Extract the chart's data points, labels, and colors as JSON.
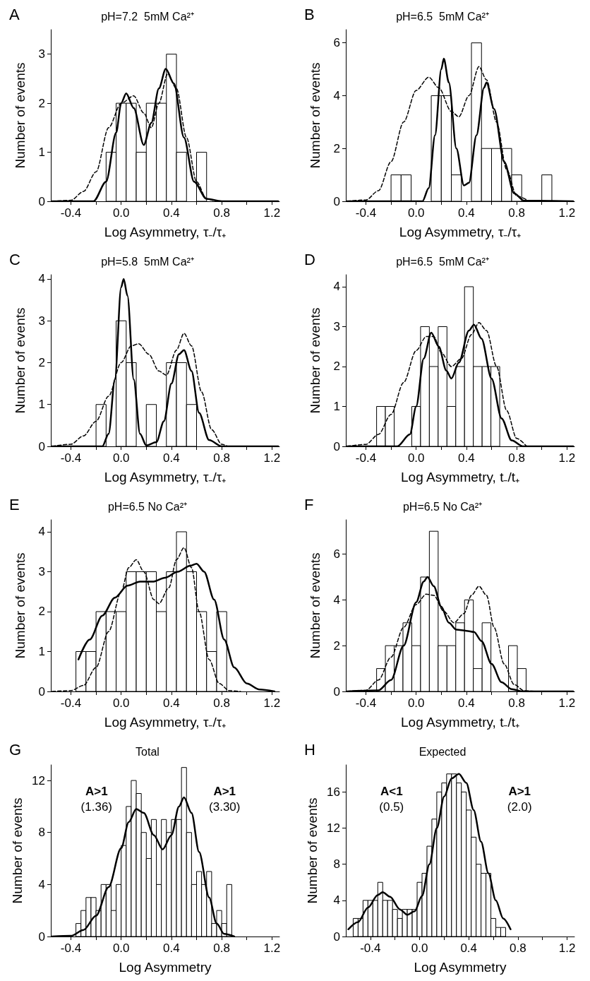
{
  "chart_data": [
    {
      "type": "histogram",
      "title": "A",
      "subtitle": "pH=7.2  5mM Ca²⁺",
      "xlabel": "Log Asymmetry, τ₋/τ₊",
      "ylabel": "Number of events",
      "color": "#ffffff",
      "grid": false,
      "bins": [
        -0.12,
        -0.04,
        0.04,
        0.12,
        0.2,
        0.28,
        0.36,
        0.44,
        0.52,
        0.6,
        0.68
      ],
      "values": [
        1,
        2,
        2,
        1,
        2,
        2,
        3,
        1,
        0,
        1
      ],
      "series": [
        {
          "type": "line",
          "color": "#000000",
          "line_style": "solid",
          "x": [
            -0.55,
            -0.22,
            -0.12,
            -0.04,
            0,
            0.04,
            0.1,
            0.18,
            0.24,
            0.3,
            0.355,
            0.42,
            0.5,
            0.58,
            0.68,
            0.8,
            1.25
          ],
          "values": [
            0,
            0,
            0.4,
            1.4,
            2,
            2.2,
            1.9,
            1.15,
            1.6,
            2.3,
            2.7,
            2.4,
            1.3,
            0.4,
            0.05,
            0,
            0
          ]
        },
        {
          "type": "line",
          "color": "#000000",
          "line_style": "dashed",
          "x": [
            -0.55,
            -0.4,
            -0.3,
            -0.2,
            -0.1,
            0,
            0.1,
            0.18,
            0.24,
            0.3,
            0.37,
            0.44,
            0.52,
            0.6,
            0.68,
            0.75
          ],
          "values": [
            0,
            0.02,
            0.2,
            0.6,
            1.5,
            2,
            2.15,
            1.8,
            1.5,
            2,
            2.6,
            2.3,
            1.3,
            0.4,
            0.05,
            0
          ]
        }
      ],
      "xlim": [
        -0.56,
        1.26
      ],
      "xticks": [
        -0.4,
        {
          "value": -0.2,
          "label": null
        },
        {
          "value": 0,
          "label": "0.0"
        },
        {
          "value": 0.2,
          "label": null
        },
        0.4,
        {
          "value": 0.6,
          "label": null
        },
        0.8,
        {
          "value": 1,
          "label": null
        },
        1.2
      ],
      "ylim": [
        0,
        3.5
      ],
      "yticks": [
        0,
        1,
        2,
        3
      ]
    },
    {
      "type": "histogram",
      "title": "B",
      "subtitle": "pH=6.5  5mM Ca²⁺",
      "xlabel": "Log Asymmetry, τ₋/τ₊",
      "ylabel": "Number of events",
      "color": "#ffffff",
      "grid": false,
      "bins": [
        -0.2,
        -0.12,
        -0.04,
        0.04,
        0.12,
        0.2,
        0.28,
        0.36,
        0.44,
        0.52,
        0.6,
        0.68,
        0.76,
        0.84,
        0.92,
        1.0,
        1.08
      ],
      "values": [
        1,
        1,
        0,
        0,
        4,
        4,
        1,
        0,
        6,
        2,
        2,
        2,
        1,
        0,
        0,
        1
      ],
      "series": [
        {
          "type": "line",
          "color": "#000000",
          "line_style": "solid",
          "x": [
            -0.55,
            0.05,
            0.1,
            0.15,
            0.2,
            0.22,
            0.26,
            0.32,
            0.38,
            0.42,
            0.48,
            0.54,
            0.56,
            0.62,
            0.7,
            0.78,
            0.86,
            1.25
          ],
          "values": [
            0,
            0,
            0.5,
            2.5,
            5,
            5.4,
            4.5,
            2,
            0.6,
            0.7,
            2.5,
            4.3,
            4.5,
            3.5,
            1.5,
            0.3,
            0.02,
            0
          ]
        },
        {
          "type": "line",
          "color": "#000000",
          "line_style": "dashed",
          "x": [
            -0.55,
            -0.4,
            -0.3,
            -0.2,
            -0.1,
            0,
            0.1,
            0.18,
            0.28,
            0.34,
            0.42,
            0.5,
            0.56,
            0.64,
            0.72,
            0.8,
            0.9
          ],
          "values": [
            0,
            0.05,
            0.4,
            1.5,
            3,
            4.2,
            4.7,
            4.3,
            3.4,
            3.2,
            4,
            5.1,
            4.6,
            3,
            1.2,
            0.2,
            0
          ]
        }
      ],
      "xlim": [
        -0.56,
        1.26
      ],
      "xticks": [
        -0.4,
        {
          "value": -0.2,
          "label": null
        },
        {
          "value": 0,
          "label": "0.0"
        },
        {
          "value": 0.2,
          "label": null
        },
        0.4,
        {
          "value": 0.6,
          "label": null
        },
        0.8,
        {
          "value": 1,
          "label": null
        },
        1.2
      ],
      "ylim": [
        0,
        6.5
      ],
      "yticks": [
        0,
        2,
        4,
        6
      ]
    },
    {
      "type": "histogram",
      "title": "C",
      "subtitle": "pH=5.8  5mM Ca²⁺",
      "xlabel": "Log Asymmetry, τ₋/τ₊",
      "ylabel": "Number of events",
      "color": "#ffffff",
      "grid": false,
      "bins": [
        -0.2,
        -0.12,
        -0.04,
        0.04,
        0.12,
        0.2,
        0.28,
        0.36,
        0.44,
        0.52,
        0.6
      ],
      "values": [
        1,
        0,
        3,
        2,
        0,
        1,
        0,
        2,
        2,
        1
      ],
      "series": [
        {
          "type": "line",
          "color": "#000000",
          "line_style": "solid",
          "x": [
            -0.55,
            -0.15,
            -0.1,
            -0.05,
            0,
            0.02,
            0.05,
            0.1,
            0.15,
            0.2,
            0.28,
            0.34,
            0.4,
            0.46,
            0.5,
            0.56,
            0.62,
            0.7,
            0.8,
            1.25
          ],
          "values": [
            0,
            0,
            0.3,
            1.6,
            3.8,
            4,
            3.6,
            1.6,
            0.3,
            0.02,
            0.1,
            0.6,
            1.5,
            2.2,
            2.3,
            1.8,
            0.8,
            0.15,
            0,
            0
          ]
        },
        {
          "type": "line",
          "color": "#000000",
          "line_style": "dashed",
          "x": [
            -0.55,
            -0.4,
            -0.3,
            -0.2,
            -0.1,
            0,
            0.08,
            0.14,
            0.22,
            0.3,
            0.36,
            0.44,
            0.5,
            0.56,
            0.64,
            0.72,
            0.8,
            0.85
          ],
          "values": [
            0,
            0.05,
            0.25,
            0.6,
            1.2,
            2,
            2.4,
            2.45,
            2.2,
            1.8,
            1.7,
            2.3,
            2.7,
            2.4,
            1.3,
            0.4,
            0.05,
            0
          ]
        }
      ],
      "xlim": [
        -0.56,
        1.26
      ],
      "xticks": [
        -0.4,
        {
          "value": -0.2,
          "label": null
        },
        {
          "value": 0,
          "label": "0.0"
        },
        {
          "value": 0.2,
          "label": null
        },
        0.4,
        {
          "value": 0.6,
          "label": null
        },
        0.8,
        {
          "value": 1,
          "label": null
        },
        1.2
      ],
      "ylim": [
        0,
        4.1
      ],
      "yticks": [
        0,
        1,
        2,
        3,
        4
      ]
    },
    {
      "type": "histogram",
      "title": "D",
      "subtitle": "pH=6.5  5mM Ca²⁺",
      "xlabel": "Log Asymmetry, t₋/t₊",
      "ylabel": "Number of events",
      "color": "#ffffff",
      "grid": false,
      "bins": [
        -0.315,
        -0.245,
        -0.175,
        -0.105,
        -0.035,
        0.035,
        0.105,
        0.175,
        0.245,
        0.315,
        0.385,
        0.455,
        0.525,
        0.595,
        0.665
      ],
      "values": [
        1,
        1,
        0,
        0,
        1,
        3,
        2,
        3,
        1,
        2,
        4,
        2,
        2,
        2
      ],
      "series": [
        {
          "type": "line",
          "color": "#000000",
          "line_style": "solid",
          "x": [
            -0.55,
            -0.15,
            -0.05,
            0,
            0.06,
            0.12,
            0.18,
            0.24,
            0.28,
            0.34,
            0.42,
            0.46,
            0.52,
            0.6,
            0.68,
            0.76,
            0.85,
            1.25
          ],
          "values": [
            0,
            0,
            0.3,
            1,
            2.2,
            2.85,
            2.5,
            1.9,
            1.7,
            2.1,
            2.9,
            3.05,
            2.7,
            1.7,
            0.7,
            0.15,
            0,
            0
          ]
        },
        {
          "type": "line",
          "color": "#000000",
          "line_style": "dashed",
          "x": [
            -0.55,
            -0.4,
            -0.3,
            -0.2,
            -0.1,
            0,
            0.08,
            0.14,
            0.2,
            0.28,
            0.36,
            0.44,
            0.5,
            0.56,
            0.64,
            0.72,
            0.8,
            0.88
          ],
          "values": [
            0,
            0.05,
            0.3,
            0.8,
            1.6,
            2.4,
            2.75,
            2.75,
            2.35,
            2,
            2.2,
            2.8,
            3.1,
            2.9,
            2,
            0.9,
            0.2,
            0
          ]
        }
      ],
      "xlim": [
        -0.56,
        1.26
      ],
      "xticks": [
        -0.4,
        {
          "value": -0.2,
          "label": null
        },
        {
          "value": 0,
          "label": "0.0"
        },
        {
          "value": 0.2,
          "label": null
        },
        0.4,
        {
          "value": 0.6,
          "label": null
        },
        0.8,
        {
          "value": 1,
          "label": null
        },
        1.2
      ],
      "ylim": [
        0,
        4.3
      ],
      "yticks": [
        0,
        1,
        2,
        3,
        4
      ]
    },
    {
      "type": "histogram",
      "title": "E",
      "subtitle": "pH=6.5 No Ca²⁺",
      "xlabel": "Log Asymmetry, τ₋/τ₊",
      "ylabel": "Number of events",
      "color": "#ffffff",
      "grid": false,
      "bins": [
        -0.36,
        -0.28,
        -0.2,
        -0.12,
        -0.04,
        0.04,
        0.12,
        0.2,
        0.28,
        0.36,
        0.44,
        0.52,
        0.6,
        0.68,
        0.76,
        0.84
      ],
      "values": [
        1,
        1,
        2,
        2,
        2,
        3,
        3,
        3,
        2,
        3,
        4,
        3,
        2,
        1,
        2
      ],
      "series": [
        {
          "type": "line",
          "color": "#000000",
          "line_style": "solid",
          "x": [
            -0.34,
            -0.25,
            -0.15,
            -0.05,
            0.05,
            0.15,
            0.25,
            0.35,
            0.45,
            0.55,
            0.6,
            0.66,
            0.74,
            0.82,
            0.9,
            1,
            1.1,
            1.22
          ],
          "values": [
            0.8,
            1.3,
            1.9,
            2.35,
            2.65,
            2.75,
            2.75,
            2.85,
            3,
            3.15,
            3.2,
            3,
            2.3,
            1.3,
            0.6,
            0.2,
            0.05,
            0
          ]
        },
        {
          "type": "line",
          "color": "#000000",
          "line_style": "dashed",
          "x": [
            -0.55,
            -0.4,
            -0.3,
            -0.2,
            -0.1,
            0,
            0.06,
            0.12,
            0.18,
            0.26,
            0.3,
            0.38,
            0.44,
            0.5,
            0.56,
            0.62,
            0.7,
            0.78,
            0.86,
            0.95
          ],
          "values": [
            0,
            0.02,
            0.15,
            0.6,
            1.5,
            2.5,
            3.1,
            3.3,
            3,
            2.3,
            2.2,
            2.6,
            3.3,
            3.6,
            3.1,
            2,
            0.8,
            0.2,
            0.02,
            0
          ]
        }
      ],
      "xlim": [
        -0.56,
        1.26
      ],
      "xticks": [
        -0.4,
        {
          "value": -0.2,
          "label": null
        },
        {
          "value": 0,
          "label": "0.0"
        },
        {
          "value": 0.2,
          "label": null
        },
        0.4,
        {
          "value": 0.6,
          "label": null
        },
        0.8,
        {
          "value": 1,
          "label": null
        },
        1.2
      ],
      "ylim": [
        0,
        4.3
      ],
      "yticks": [
        0,
        1,
        2,
        3,
        4
      ]
    },
    {
      "type": "histogram",
      "title": "F",
      "subtitle": "pH=6.5 No Ca²⁺",
      "xlabel": "Log Asymmetry, t₋/t₊",
      "ylabel": "Number of events",
      "color": "#ffffff",
      "grid": false,
      "bins": [
        -0.315,
        -0.245,
        -0.175,
        -0.105,
        -0.035,
        0.035,
        0.105,
        0.175,
        0.245,
        0.315,
        0.385,
        0.455,
        0.525,
        0.595,
        0.665,
        0.735,
        0.805,
        0.875
      ],
      "values": [
        1,
        2,
        2,
        3,
        2,
        5,
        7,
        2,
        2,
        3,
        4,
        1,
        3,
        0,
        0,
        2,
        1
      ],
      "series": [
        {
          "type": "line",
          "color": "#000000",
          "line_style": "solid",
          "x": [
            -0.55,
            -0.3,
            -0.2,
            -0.1,
            0,
            0.06,
            0.09,
            0.14,
            0.2,
            0.26,
            0.32,
            0.4,
            0.46,
            0.52,
            0.6,
            0.68,
            0.76,
            0.85,
            1.25
          ],
          "values": [
            0,
            0.05,
            0.5,
            2,
            3.9,
            4.8,
            5,
            4.6,
            3.7,
            3,
            2.7,
            2.65,
            2.6,
            2.2,
            1.2,
            0.4,
            0.1,
            0,
            0
          ]
        },
        {
          "type": "line",
          "color": "#000000",
          "line_style": "dashed",
          "x": [
            -0.55,
            -0.4,
            -0.3,
            -0.2,
            -0.1,
            0,
            0.08,
            0.14,
            0.22,
            0.3,
            0.38,
            0.44,
            0.5,
            0.56,
            0.62,
            0.7,
            0.78,
            0.86,
            0.95
          ],
          "values": [
            0,
            0.05,
            0.5,
            1.5,
            2.8,
            3.8,
            4.25,
            4.2,
            3.5,
            3,
            3.4,
            4.2,
            4.6,
            4.2,
            2.8,
            1.2,
            0.3,
            0.03,
            0
          ]
        }
      ],
      "xlim": [
        -0.56,
        1.26
      ],
      "xticks": [
        -0.4,
        {
          "value": -0.2,
          "label": null
        },
        {
          "value": 0,
          "label": "0.0"
        },
        {
          "value": 0.2,
          "label": null
        },
        0.4,
        {
          "value": 0.6,
          "label": null
        },
        0.8,
        {
          "value": 1,
          "label": null
        },
        1.2
      ],
      "ylim": [
        0,
        7.5
      ],
      "yticks": [
        0,
        2,
        4,
        6
      ]
    },
    {
      "type": "histogram",
      "title": "G",
      "subtitle": "Total",
      "xlabel": "Log Asymmetry",
      "ylabel": "Number of events",
      "color": "#ffffff",
      "grid": false,
      "bins": [
        -0.36,
        -0.32,
        -0.28,
        -0.24,
        -0.2,
        -0.16,
        -0.12,
        -0.08,
        -0.04,
        0,
        0.04,
        0.08,
        0.12,
        0.16,
        0.2,
        0.24,
        0.28,
        0.32,
        0.36,
        0.4,
        0.44,
        0.48,
        0.52,
        0.56,
        0.6,
        0.64,
        0.68,
        0.72,
        0.76,
        0.8,
        0.84,
        0.88
      ],
      "values": [
        1,
        2,
        3,
        3,
        2,
        4,
        4,
        2,
        4,
        7,
        10,
        12,
        11,
        8,
        6,
        9,
        4,
        9,
        8,
        9,
        9,
        13,
        8,
        4,
        5,
        4,
        5,
        1,
        2,
        1,
        4
      ],
      "series": [
        {
          "type": "line",
          "color": "#000000",
          "line_style": "solid",
          "x": [
            -0.55,
            -0.4,
            -0.3,
            -0.2,
            -0.1,
            0,
            0.06,
            0.12,
            0.18,
            0.26,
            0.33,
            0.4,
            0.46,
            0.5,
            0.56,
            0.62,
            0.7,
            0.76,
            0.82,
            0.9
          ],
          "values": [
            0,
            0.05,
            0.5,
            1.6,
            3.8,
            6.8,
            8.8,
            9.8,
            9.5,
            7.8,
            6.7,
            7.8,
            10,
            10.7,
            9.5,
            6.5,
            3,
            1,
            0.2,
            0
          ]
        }
      ],
      "annotations": [
        "A>1\n(1.36)",
        "A>1\n(3.30)"
      ],
      "xlim": [
        -0.56,
        1.26
      ],
      "xticks": [
        -0.4,
        {
          "value": -0.2,
          "label": null
        },
        {
          "value": 0,
          "label": "0.0"
        },
        {
          "value": 0.2,
          "label": null
        },
        0.4,
        {
          "value": 0.6,
          "label": null
        },
        0.8,
        {
          "value": 1,
          "label": null
        },
        1.2
      ],
      "ylim": [
        0,
        13.2
      ],
      "yticks": [
        0,
        4,
        8,
        12
      ]
    },
    {
      "type": "histogram",
      "title": "H",
      "subtitle": "Expected",
      "xlabel": "Log Asymmetry",
      "ylabel": "Number of events",
      "color": "#ffffff",
      "grid": false,
      "bins": [
        -0.54,
        -0.5,
        -0.46,
        -0.42,
        -0.38,
        -0.34,
        -0.3,
        -0.26,
        -0.22,
        -0.18,
        -0.14,
        -0.1,
        -0.06,
        -0.02,
        0.02,
        0.06,
        0.1,
        0.14,
        0.18,
        0.22,
        0.26,
        0.3,
        0.34,
        0.38,
        0.42,
        0.46,
        0.5,
        0.54,
        0.58,
        0.62,
        0.66,
        0.7
      ],
      "values": [
        2,
        2,
        4,
        4,
        4,
        6,
        4,
        4,
        3,
        2,
        3,
        3,
        3,
        6,
        7,
        10,
        13,
        16,
        17,
        18,
        18,
        17,
        16,
        14,
        11,
        8,
        7,
        7,
        2,
        1,
        1
      ],
      "series": [
        {
          "type": "line",
          "color": "#000000",
          "line_style": "solid",
          "x": [
            -0.58,
            -0.5,
            -0.42,
            -0.34,
            -0.3,
            -0.24,
            -0.16,
            -0.1,
            -0.04,
            0.02,
            0.08,
            0.14,
            0.2,
            0.26,
            0.32,
            0.38,
            0.44,
            0.5,
            0.56,
            0.62,
            0.68,
            0.74
          ],
          "values": [
            0.8,
            1.6,
            3.2,
            4.6,
            4.9,
            4.4,
            3,
            2.4,
            2.8,
            4.5,
            8,
            12,
            15.5,
            17.5,
            18,
            17,
            14,
            10.5,
            7,
            4,
            2,
            0.8
          ]
        }
      ],
      "annotations": [
        "A<1\n(0.5)",
        "A>1\n(2.0)"
      ],
      "xlim": [
        -0.6,
        1.26
      ],
      "xticks": [
        -0.4,
        {
          "value": -0.2,
          "label": null
        },
        {
          "value": 0,
          "label": "0.0"
        },
        {
          "value": 0.2,
          "label": null
        },
        0.4,
        {
          "value": 0.6,
          "label": null
        },
        0.8,
        {
          "value": 1,
          "label": null
        },
        1.2
      ],
      "ylim": [
        0,
        19
      ],
      "yticks": [
        0,
        4,
        8,
        12,
        16
      ]
    }
  ]
}
